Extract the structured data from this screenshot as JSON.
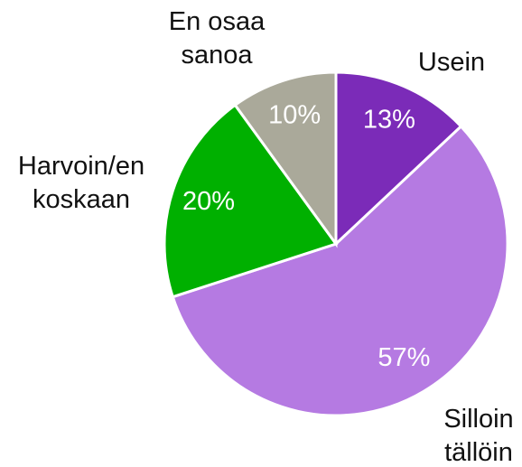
{
  "chart_data": {
    "type": "pie",
    "categories": [
      "Usein",
      "Silloin\ntällöin",
      "Harvoin/en\nkoskaan",
      "En osaa\nsanoa"
    ],
    "values": [
      13,
      57,
      20,
      10
    ],
    "value_labels": [
      "13%",
      "57%",
      "20%",
      "10%"
    ],
    "colors": [
      "#7b2bb8",
      "#b57ae2",
      "#00b000",
      "#aaa99a"
    ]
  }
}
